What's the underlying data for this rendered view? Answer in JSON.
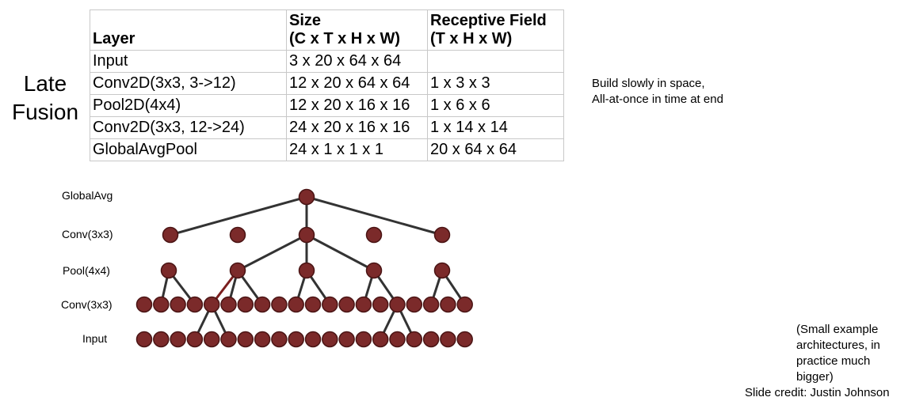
{
  "side_title": [
    "Late",
    "Fusion"
  ],
  "table": {
    "headers": [
      [
        "Layer"
      ],
      [
        "Size",
        "(C x T x H x W)"
      ],
      [
        "Receptive Field",
        "(T x H x W)"
      ]
    ],
    "rows": [
      [
        "Input",
        "3 x 20 x 64 x 64",
        ""
      ],
      [
        "Conv2D(3x3, 3->12)",
        "12 x 20 x 64 x 64",
        "1 x 3 x 3"
      ],
      [
        "Pool2D(4x4)",
        "12 x 20 x 16 x 16",
        "1 x 6 x 6"
      ],
      [
        "Conv2D(3x3, 12->24)",
        "24 x 20 x 16 x 16",
        "1 x 14 x 14"
      ],
      [
        "GlobalAvgPool",
        "24 x 1 x 1 x 1",
        "20 x 64 x 64"
      ]
    ]
  },
  "note": [
    "Build slowly in space,",
    "All-at-once in time at end"
  ],
  "diagram": {
    "row_labels": [
      "GlobalAvg",
      "Conv(3x3)",
      "Pool(4x4)",
      "Conv(3x3)",
      "Input"
    ],
    "node_color": "#7b2a2a",
    "edge_color": "#333333",
    "highlight_edge_color": "#7b1f1f"
  },
  "footnote": [
    "(Small example",
    "architectures, in",
    "practice much",
    "bigger)"
  ],
  "credit": "Slide credit: Justin Johnson"
}
